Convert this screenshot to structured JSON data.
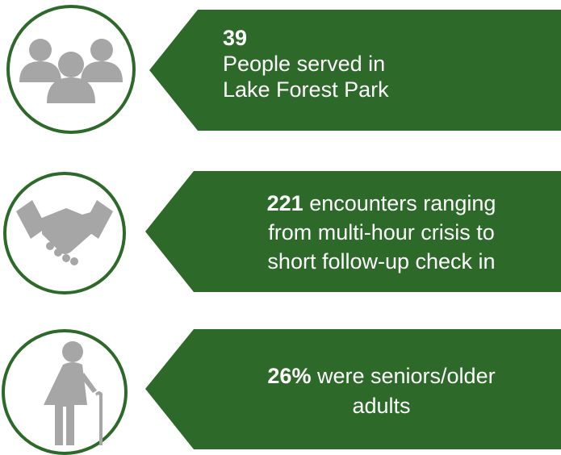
{
  "items": [
    {
      "highlight": "39",
      "lines": [
        "People served in",
        "Lake Forest Park"
      ]
    },
    {
      "highlight": "221",
      "lines": [
        "encounters ranging",
        "from multi-hour crisis to",
        "short follow-up check in"
      ]
    },
    {
      "highlight": "26%",
      "lines": [
        "were seniors/older",
        "adults"
      ]
    }
  ]
}
